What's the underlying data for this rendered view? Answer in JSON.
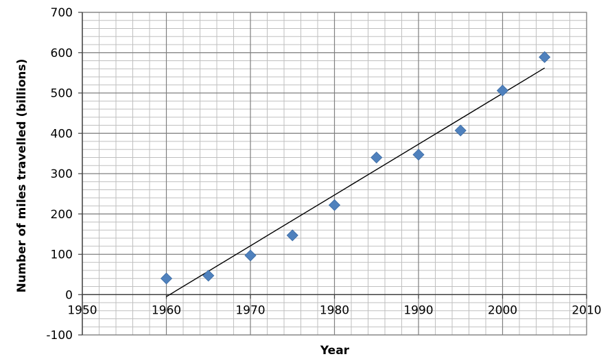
{
  "chart_data": {
    "type": "scatter",
    "title": "",
    "xlabel": "Year",
    "ylabel": "Number of miles travelled  (billions)",
    "xlim": [
      1950,
      2010
    ],
    "ylim": [
      -100,
      700
    ],
    "x_major_step": 10,
    "y_major_step": 100,
    "x_minor_step": 2,
    "y_minor_step": 20,
    "x_ticks": [
      "1950",
      "1960",
      "1970",
      "1980",
      "1990",
      "2000",
      "2010"
    ],
    "y_ticks": [
      "-100",
      "0",
      "100",
      "200",
      "300",
      "400",
      "500",
      "600",
      "700"
    ],
    "grid": true,
    "legend": "none",
    "series": [
      {
        "marker": "diamond",
        "color": "#4F81BD",
        "x": [
          1960,
          1965,
          1970,
          1975,
          1980,
          1985,
          1990,
          1995,
          2000,
          2005
        ],
        "y": [
          40,
          47,
          97,
          147,
          222,
          340,
          347,
          407,
          506,
          589
        ]
      }
    ],
    "trendline": {
      "type": "linear",
      "color": "#000000",
      "x": [
        1960,
        2005
      ],
      "y": [
        -5,
        562
      ]
    }
  }
}
